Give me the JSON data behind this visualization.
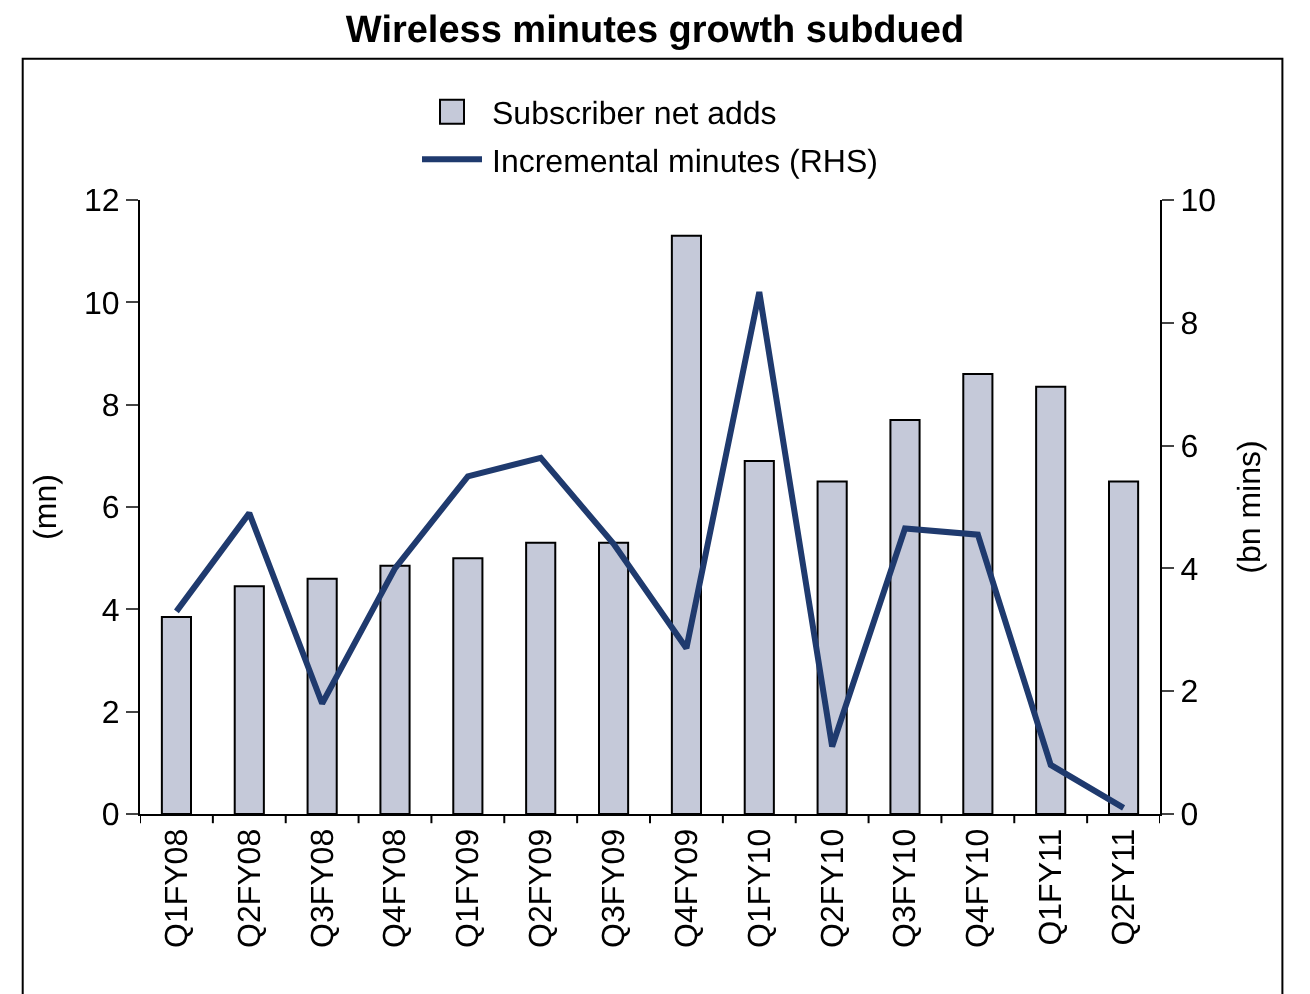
{
  "chart_data": {
    "type": "bar",
    "title": "Wireless minutes growth subdued",
    "ylabel": "(mn)",
    "y2label": "(bn mins)",
    "categories": [
      "Q1FY08",
      "Q2FY08",
      "Q3FY08",
      "Q4FY08",
      "Q1FY09",
      "Q2FY09",
      "Q3FY09",
      "Q4FY09",
      "Q1FY10",
      "Q2FY10",
      "Q3FY10",
      "Q4FY10",
      "Q1FY11",
      "Q2FY11"
    ],
    "series": [
      {
        "name": "Subscriber net adds",
        "color": "#c5c9d9",
        "values": [
          3.85,
          4.45,
          4.6,
          4.85,
          5.0,
          5.3,
          5.3,
          11.3,
          6.9,
          6.5,
          7.7,
          8.6,
          8.35,
          6.5
        ]
      },
      {
        "name": "Incremental minutes (RHS)",
        "type": "line",
        "axis": "y2",
        "color": "#1f3a6e",
        "values": [
          3.3,
          4.9,
          1.8,
          4.0,
          5.5,
          5.8,
          4.4,
          2.7,
          8.5,
          1.1,
          4.65,
          4.55,
          0.8,
          0.1
        ]
      }
    ],
    "ylim": [
      0,
      12
    ],
    "yticks": [
      0,
      2,
      4,
      6,
      8,
      10,
      12
    ],
    "y2lim": [
      0,
      10
    ],
    "y2ticks": [
      0,
      2,
      4,
      6,
      8,
      10
    ],
    "grid": false,
    "legend": "top",
    "marker": "none",
    "line_style": "solid"
  }
}
